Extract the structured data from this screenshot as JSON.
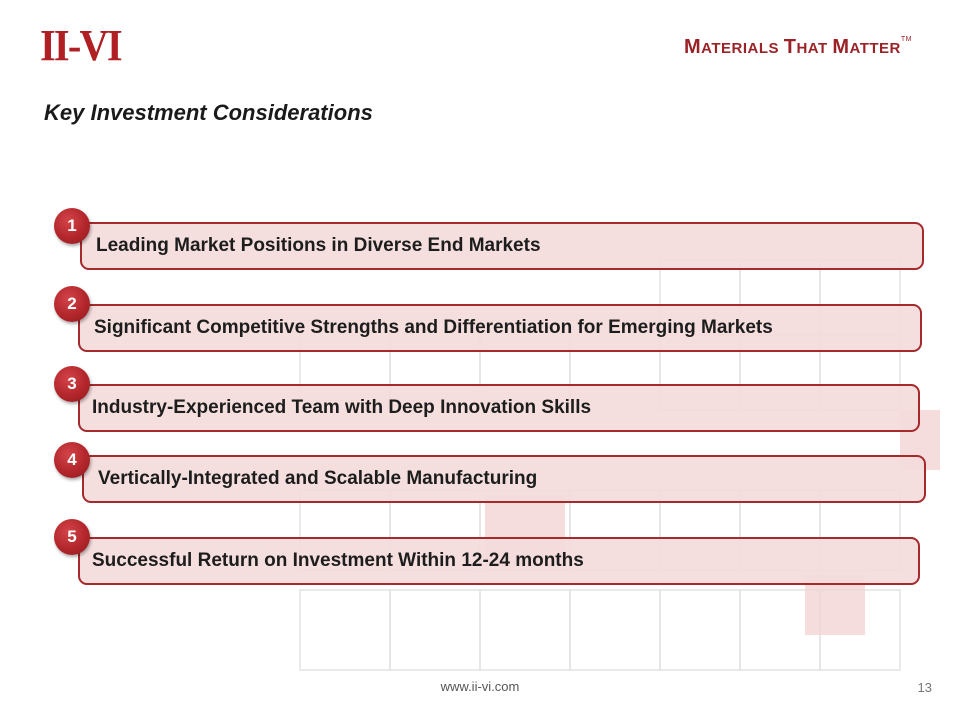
{
  "header": {
    "logo_text": "II-VI",
    "tagline_m": "M",
    "tagline_rest1": "ATERIALS ",
    "tagline_t": "T",
    "tagline_hat": "HAT ",
    "tagline_m2": "M",
    "tagline_atter": "ATTER",
    "tagline_tm": "TM"
  },
  "title": "Key Investment Considerations",
  "items": [
    {
      "number": "1",
      "text": "Leading Market Positions in Diverse End Markets"
    },
    {
      "number": "2",
      "text": "Significant Competitive Strengths and Differentiation for Emerging Markets"
    },
    {
      "number": "3",
      "text": "Industry-Experienced Team with Deep Innovation Skills"
    },
    {
      "number": "4",
      "text": "Vertically-Integrated and Scalable Manufacturing"
    },
    {
      "number": "5",
      "text": "Successful Return on Investment Within 12-24 months"
    }
  ],
  "footer": {
    "url": "www.ii-vi.com",
    "page": "13"
  },
  "colors": {
    "brand_red": "#b01f24",
    "bar_fill": "#f4dbdc",
    "bar_border": "#a52a2e"
  }
}
